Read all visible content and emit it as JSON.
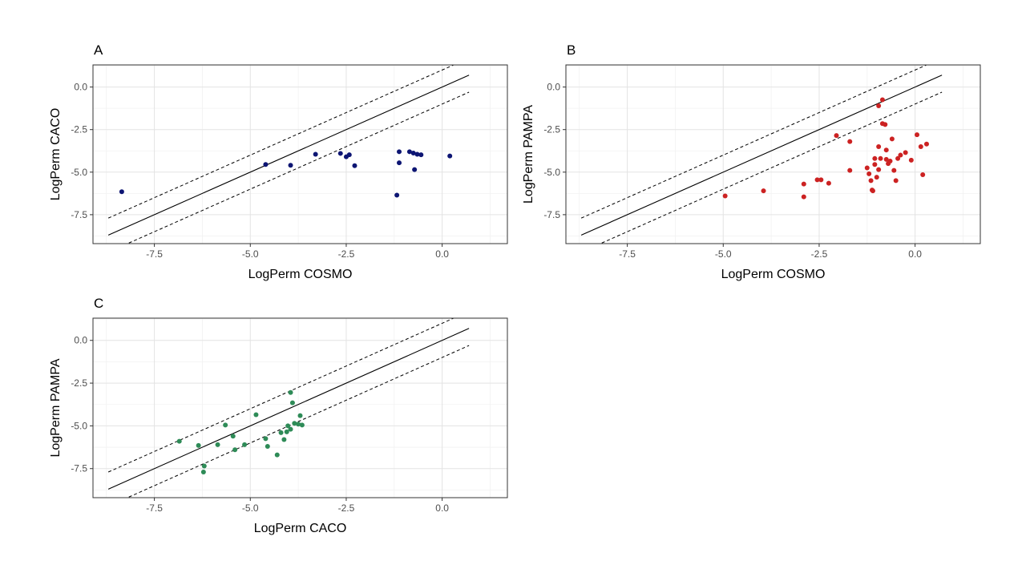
{
  "chart_data": [
    {
      "type": "scatter",
      "panel": "A",
      "xlabel": "LogPerm COSMO",
      "ylabel": "LogPerm CACO",
      "xlim": [
        -9.1,
        1.7
      ],
      "ylim": [
        -9.2,
        1.3
      ],
      "xticks": [
        -7.5,
        -5.0,
        -2.5,
        0.0
      ],
      "yticks": [
        0.0,
        -2.5,
        -5.0,
        -7.5
      ],
      "xtick_labels": [
        "-7.5",
        "-5.0",
        "-2.5",
        "0.0"
      ],
      "ytick_labels": [
        "0.0",
        "-2.5",
        "-5.0",
        "-7.5"
      ],
      "grid": true,
      "color": "#0d1573",
      "reference_lines": {
        "identity_slope": 1,
        "band_offset": 1,
        "x_range": [
          -8.7,
          0.7
        ]
      },
      "points": [
        [
          -8.35,
          -6.15
        ],
        [
          -4.6,
          -4.55
        ],
        [
          -3.95,
          -4.6
        ],
        [
          -3.3,
          -3.95
        ],
        [
          -2.65,
          -3.9
        ],
        [
          -2.5,
          -4.1
        ],
        [
          -2.42,
          -3.98
        ],
        [
          -2.28,
          -4.62
        ],
        [
          -1.12,
          -3.8
        ],
        [
          -1.12,
          -4.45
        ],
        [
          -1.18,
          -6.35
        ],
        [
          -0.85,
          -3.8
        ],
        [
          -0.75,
          -3.88
        ],
        [
          -0.65,
          -3.95
        ],
        [
          -0.55,
          -3.98
        ],
        [
          -0.72,
          -4.85
        ],
        [
          0.2,
          -4.05
        ]
      ]
    },
    {
      "type": "scatter",
      "panel": "B",
      "xlabel": "LogPerm COSMO",
      "ylabel": "LogPerm PAMPA",
      "xlim": [
        -9.1,
        1.7
      ],
      "ylim": [
        -9.2,
        1.3
      ],
      "xticks": [
        -7.5,
        -5.0,
        -2.5,
        0.0
      ],
      "yticks": [
        0.0,
        -2.5,
        -5.0,
        -7.5
      ],
      "xtick_labels": [
        "-7.5",
        "-5.0",
        "-2.5",
        "0.0"
      ],
      "ytick_labels": [
        "0.0",
        "-2.5",
        "-5.0",
        "-7.5"
      ],
      "grid": true,
      "color": "#cc2222",
      "reference_lines": {
        "identity_slope": 1,
        "band_offset": 1,
        "x_range": [
          -8.7,
          0.7
        ]
      },
      "points": [
        [
          -4.95,
          -6.4
        ],
        [
          -3.95,
          -6.1
        ],
        [
          -2.9,
          -6.45
        ],
        [
          -2.9,
          -5.7
        ],
        [
          -2.55,
          -5.45
        ],
        [
          -2.45,
          -5.45
        ],
        [
          -2.25,
          -5.65
        ],
        [
          -2.05,
          -2.85
        ],
        [
          -1.7,
          -3.2
        ],
        [
          -1.7,
          -4.9
        ],
        [
          -1.25,
          -4.75
        ],
        [
          -1.2,
          -5.1
        ],
        [
          -1.15,
          -5.5
        ],
        [
          -1.12,
          -6.05
        ],
        [
          -1.1,
          -6.1
        ],
        [
          -1.05,
          -4.55
        ],
        [
          -1.0,
          -5.3
        ],
        [
          -0.95,
          -4.85
        ],
        [
          -0.95,
          -3.5
        ],
        [
          -0.9,
          -4.2
        ],
        [
          -0.95,
          -1.1
        ],
        [
          -0.85,
          -0.75
        ],
        [
          -0.85,
          -2.15
        ],
        [
          -0.78,
          -2.2
        ],
        [
          -0.75,
          -3.7
        ],
        [
          -0.75,
          -4.25
        ],
        [
          -0.7,
          -4.5
        ],
        [
          -0.65,
          -4.35
        ],
        [
          -0.6,
          -3.05
        ],
        [
          -0.55,
          -4.9
        ],
        [
          -0.5,
          -5.5
        ],
        [
          -0.45,
          -4.2
        ],
        [
          -0.38,
          -4.0
        ],
        [
          -0.25,
          -3.85
        ],
        [
          -0.1,
          -4.3
        ],
        [
          0.05,
          -2.8
        ],
        [
          0.15,
          -3.5
        ],
        [
          0.2,
          -5.15
        ],
        [
          0.3,
          -3.35
        ],
        [
          -1.05,
          -4.2
        ]
      ]
    },
    {
      "type": "scatter",
      "panel": "C",
      "xlabel": "LogPerm CACO",
      "ylabel": "LogPerm PAMPA",
      "xlim": [
        -9.1,
        1.7
      ],
      "ylim": [
        -9.2,
        1.3
      ],
      "xticks": [
        -7.5,
        -5.0,
        -2.5,
        0.0
      ],
      "yticks": [
        0.0,
        -2.5,
        -5.0,
        -7.5
      ],
      "xtick_labels": [
        "-7.5",
        "-5.0",
        "-2.5",
        "0.0"
      ],
      "ytick_labels": [
        "0.0",
        "-2.5",
        "-5.0",
        "-7.5"
      ],
      "grid": true,
      "color": "#2e8b57",
      "reference_lines": {
        "identity_slope": 1,
        "band_offset": 1,
        "x_range": [
          -8.7,
          0.7
        ]
      },
      "points": [
        [
          -6.85,
          -5.9
        ],
        [
          -6.35,
          -6.15
        ],
        [
          -6.2,
          -7.35
        ],
        [
          -6.22,
          -7.7
        ],
        [
          -5.85,
          -6.1
        ],
        [
          -5.65,
          -4.95
        ],
        [
          -5.45,
          -5.6
        ],
        [
          -5.4,
          -6.4
        ],
        [
          -5.15,
          -6.1
        ],
        [
          -4.85,
          -4.35
        ],
        [
          -4.6,
          -5.75
        ],
        [
          -4.55,
          -6.2
        ],
        [
          -4.3,
          -6.7
        ],
        [
          -4.2,
          -5.4
        ],
        [
          -4.12,
          -5.8
        ],
        [
          -4.05,
          -5.35
        ],
        [
          -4.02,
          -5.0
        ],
        [
          -3.95,
          -3.05
        ],
        [
          -3.9,
          -3.65
        ],
        [
          -3.95,
          -5.2
        ],
        [
          -3.85,
          -4.85
        ],
        [
          -3.75,
          -4.9
        ],
        [
          -3.7,
          -4.4
        ],
        [
          -3.65,
          -4.95
        ]
      ]
    }
  ]
}
